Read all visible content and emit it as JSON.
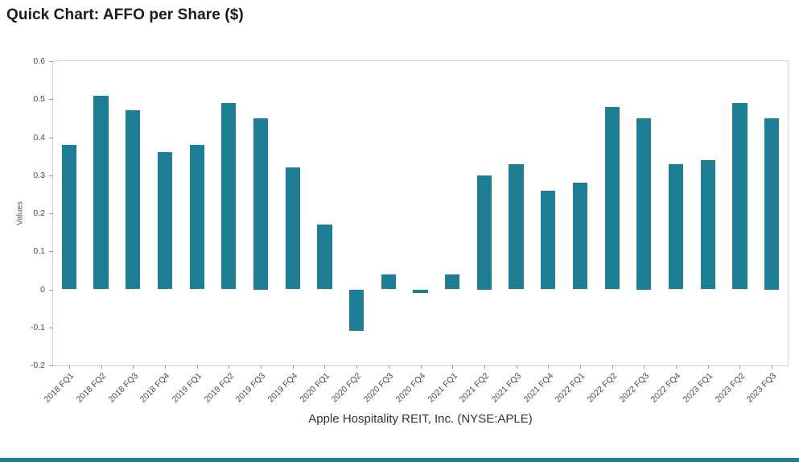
{
  "header": {
    "title": "Quick Chart: AFFO per Share ($)"
  },
  "colors": {
    "bar": "#1d7e96",
    "accent": "#1d7e96",
    "axis_text": "#4a4a4a",
    "border": "#d4d4d4"
  },
  "chart_data": {
    "type": "bar",
    "title": "Quick Chart: AFFO per Share ($)",
    "xlabel": "Apple Hospitality REIT, Inc. (NYSE:APLE)",
    "ylabel": "Values",
    "ylim": [
      -0.2,
      0.6
    ],
    "yticks": [
      0.6,
      0.5,
      0.4,
      0.3,
      0.2,
      0.1,
      0,
      -0.1,
      -0.2
    ],
    "grid": false,
    "legend": false,
    "categories": [
      "2018 FQ1",
      "2018 FQ2",
      "2018 FQ3",
      "2018 FQ4",
      "2019 FQ1",
      "2019 FQ2",
      "2019 FQ3",
      "2019 FQ4",
      "2020 FQ1",
      "2020 FQ2",
      "2020 FQ3",
      "2020 FQ4",
      "2021 FQ1",
      "2021 FQ2",
      "2021 FQ3",
      "2021 FQ4",
      "2022 FQ1",
      "2022 FQ2",
      "2022 FQ3",
      "2022 FQ4",
      "2023 FQ1",
      "2023 FQ2",
      "2023 FQ3"
    ],
    "values": [
      0.38,
      0.51,
      0.47,
      0.36,
      0.38,
      0.49,
      0.45,
      0.32,
      0.17,
      -0.11,
      0.04,
      -0.01,
      0.04,
      0.3,
      0.33,
      0.26,
      0.28,
      0.48,
      0.45,
      0.33,
      0.34,
      0.49,
      0.45
    ]
  }
}
